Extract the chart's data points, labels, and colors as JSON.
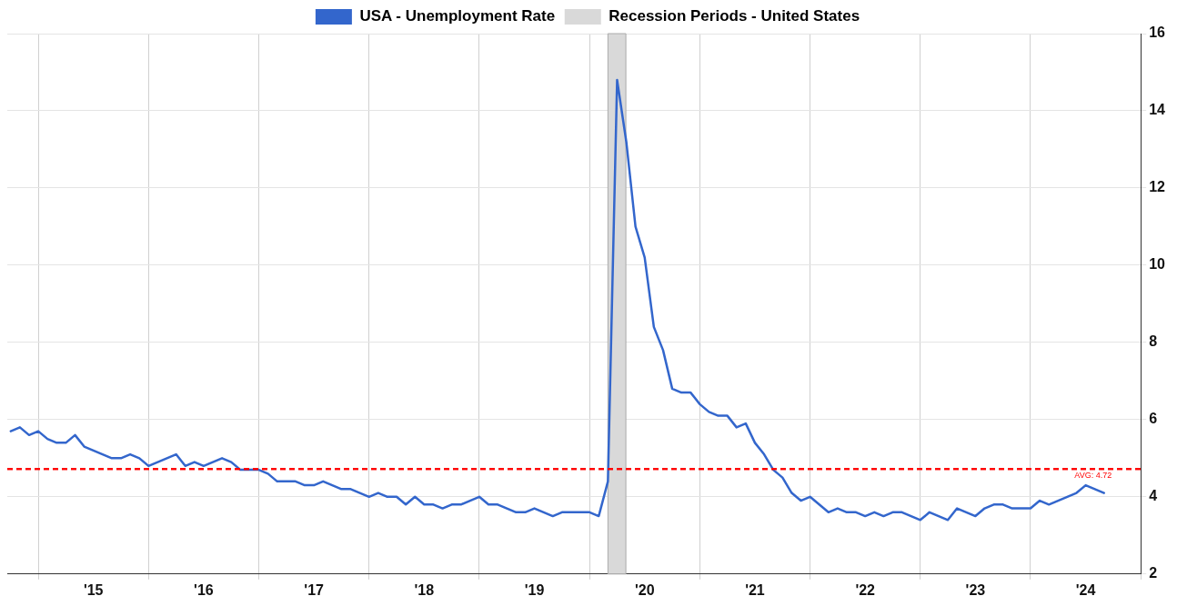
{
  "chart_data": {
    "type": "line",
    "legend": "top",
    "x": [
      "2014-10",
      "2014-11",
      "2014-12",
      "2015-01",
      "2015-02",
      "2015-03",
      "2015-04",
      "2015-05",
      "2015-06",
      "2015-07",
      "2015-08",
      "2015-09",
      "2015-10",
      "2015-11",
      "2015-12",
      "2016-01",
      "2016-02",
      "2016-03",
      "2016-04",
      "2016-05",
      "2016-06",
      "2016-07",
      "2016-08",
      "2016-09",
      "2016-10",
      "2016-11",
      "2016-12",
      "2017-01",
      "2017-02",
      "2017-03",
      "2017-04",
      "2017-05",
      "2017-06",
      "2017-07",
      "2017-08",
      "2017-09",
      "2017-10",
      "2017-11",
      "2017-12",
      "2018-01",
      "2018-02",
      "2018-03",
      "2018-04",
      "2018-05",
      "2018-06",
      "2018-07",
      "2018-08",
      "2018-09",
      "2018-10",
      "2018-11",
      "2018-12",
      "2019-01",
      "2019-02",
      "2019-03",
      "2019-04",
      "2019-05",
      "2019-06",
      "2019-07",
      "2019-08",
      "2019-09",
      "2019-10",
      "2019-11",
      "2019-12",
      "2020-01",
      "2020-02",
      "2020-03",
      "2020-04",
      "2020-05",
      "2020-06",
      "2020-07",
      "2020-08",
      "2020-09",
      "2020-10",
      "2020-11",
      "2020-12",
      "2021-01",
      "2021-02",
      "2021-03",
      "2021-04",
      "2021-05",
      "2021-06",
      "2021-07",
      "2021-08",
      "2021-09",
      "2021-10",
      "2021-11",
      "2021-12",
      "2022-01",
      "2022-02",
      "2022-03",
      "2022-04",
      "2022-05",
      "2022-06",
      "2022-07",
      "2022-08",
      "2022-09",
      "2022-10",
      "2022-11",
      "2022-12",
      "2023-01",
      "2023-02",
      "2023-03",
      "2023-04",
      "2023-05",
      "2023-06",
      "2023-07",
      "2023-08",
      "2023-09",
      "2023-10",
      "2023-11",
      "2023-12",
      "2024-01",
      "2024-02",
      "2024-03",
      "2024-04",
      "2024-05",
      "2024-06",
      "2024-07",
      "2024-08",
      "2024-09"
    ],
    "series": [
      {
        "name": "USA - Unemployment Rate",
        "color": "#3366cc",
        "values": [
          5.7,
          5.8,
          5.6,
          5.7,
          5.5,
          5.4,
          5.4,
          5.6,
          5.3,
          5.2,
          5.1,
          5.0,
          5.0,
          5.1,
          5.0,
          4.8,
          4.9,
          5.0,
          5.1,
          4.8,
          4.9,
          4.8,
          4.9,
          5.0,
          4.9,
          4.7,
          4.7,
          4.7,
          4.6,
          4.4,
          4.4,
          4.4,
          4.3,
          4.3,
          4.4,
          4.3,
          4.2,
          4.2,
          4.1,
          4.0,
          4.1,
          4.0,
          4.0,
          3.8,
          4.0,
          3.8,
          3.8,
          3.7,
          3.8,
          3.8,
          3.9,
          4.0,
          3.8,
          3.8,
          3.7,
          3.6,
          3.6,
          3.7,
          3.6,
          3.5,
          3.6,
          3.6,
          3.6,
          3.6,
          3.5,
          4.4,
          14.8,
          13.2,
          11.0,
          10.2,
          8.4,
          7.8,
          6.8,
          6.7,
          6.7,
          6.4,
          6.2,
          6.1,
          6.1,
          5.8,
          5.9,
          5.4,
          5.1,
          4.7,
          4.5,
          4.1,
          3.9,
          4.0,
          3.8,
          3.6,
          3.7,
          3.6,
          3.6,
          3.5,
          3.6,
          3.5,
          3.6,
          3.6,
          3.5,
          3.4,
          3.6,
          3.5,
          3.4,
          3.7,
          3.6,
          3.5,
          3.7,
          3.8,
          3.8,
          3.7,
          3.7,
          3.7,
          3.9,
          3.8,
          3.9,
          4.0,
          4.1,
          4.3,
          4.2,
          4.1
        ]
      }
    ],
    "xlim": [
      "2014-09-20",
      "2025-01"
    ],
    "xticks": [
      {
        "value": "2015-01",
        "label": null
      },
      {
        "value": "2015-07",
        "label": "'15"
      },
      {
        "value": "2016-01",
        "label": null
      },
      {
        "value": "2016-07",
        "label": "'16"
      },
      {
        "value": "2017-01",
        "label": null
      },
      {
        "value": "2017-07",
        "label": "'17"
      },
      {
        "value": "2018-01",
        "label": null
      },
      {
        "value": "2018-07",
        "label": "'18"
      },
      {
        "value": "2019-01",
        "label": null
      },
      {
        "value": "2019-07",
        "label": "'19"
      },
      {
        "value": "2020-01",
        "label": null
      },
      {
        "value": "2020-07",
        "label": "'20"
      },
      {
        "value": "2021-01",
        "label": null
      },
      {
        "value": "2021-07",
        "label": "'21"
      },
      {
        "value": "2022-01",
        "label": null
      },
      {
        "value": "2022-07",
        "label": "'22"
      },
      {
        "value": "2023-01",
        "label": null
      },
      {
        "value": "2023-07",
        "label": "'23"
      },
      {
        "value": "2024-01",
        "label": null
      },
      {
        "value": "2024-07",
        "label": "'24"
      },
      {
        "value": "2025-01",
        "label": null
      }
    ],
    "ylim": [
      2,
      16
    ],
    "yticks": [
      2,
      4,
      6,
      8,
      10,
      12,
      14,
      16
    ],
    "grid": true,
    "marker": "none",
    "line_style": "solid",
    "ref_lines": [
      {
        "axis": "y",
        "value": 4.72,
        "label": "AVG: 4.72",
        "color": "#ff0000",
        "line_style": "dashed"
      }
    ],
    "bands": [
      {
        "axis": "x",
        "from": "2020-03",
        "to": "2020-04-30",
        "label": "Recession Periods - United States",
        "color": "#d9d9d9"
      }
    ]
  }
}
